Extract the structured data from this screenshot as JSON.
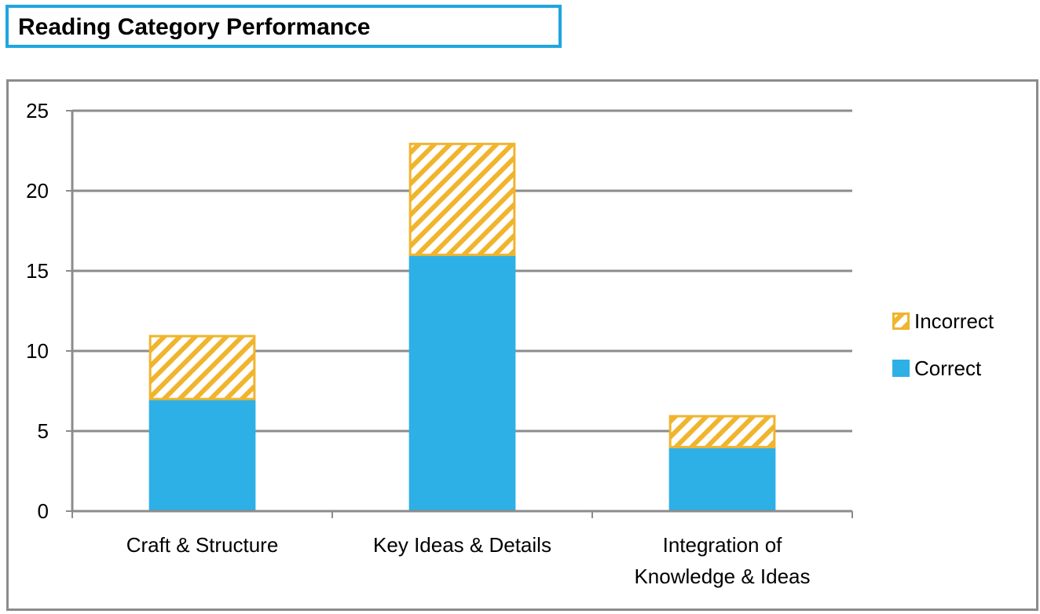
{
  "header": {
    "title": "Reading Category Performance"
  },
  "chart_data": {
    "type": "bar",
    "stacked": true,
    "categories": [
      [
        "Craft & Structure"
      ],
      [
        "Key Ideas & Details"
      ],
      [
        "Integration of",
        "Knowledge & Ideas"
      ]
    ],
    "series": [
      {
        "name": "Correct",
        "values": [
          7,
          16,
          4
        ],
        "color": "#2cb0e6",
        "pattern": "solid"
      },
      {
        "name": "Incorrect",
        "values": [
          4,
          7,
          2
        ],
        "color": "#f0b42d",
        "pattern": "diagonal-hatch"
      }
    ],
    "ylim": [
      0,
      25
    ],
    "yticks": [
      0,
      5,
      10,
      15,
      20,
      25
    ],
    "grid": true,
    "legend_position": "right",
    "legend_order": [
      "Incorrect",
      "Correct"
    ],
    "colors": {
      "title_border": "#1fa6e0",
      "gridline": "#8c8c8c",
      "frame": "#8c8c8c"
    }
  }
}
